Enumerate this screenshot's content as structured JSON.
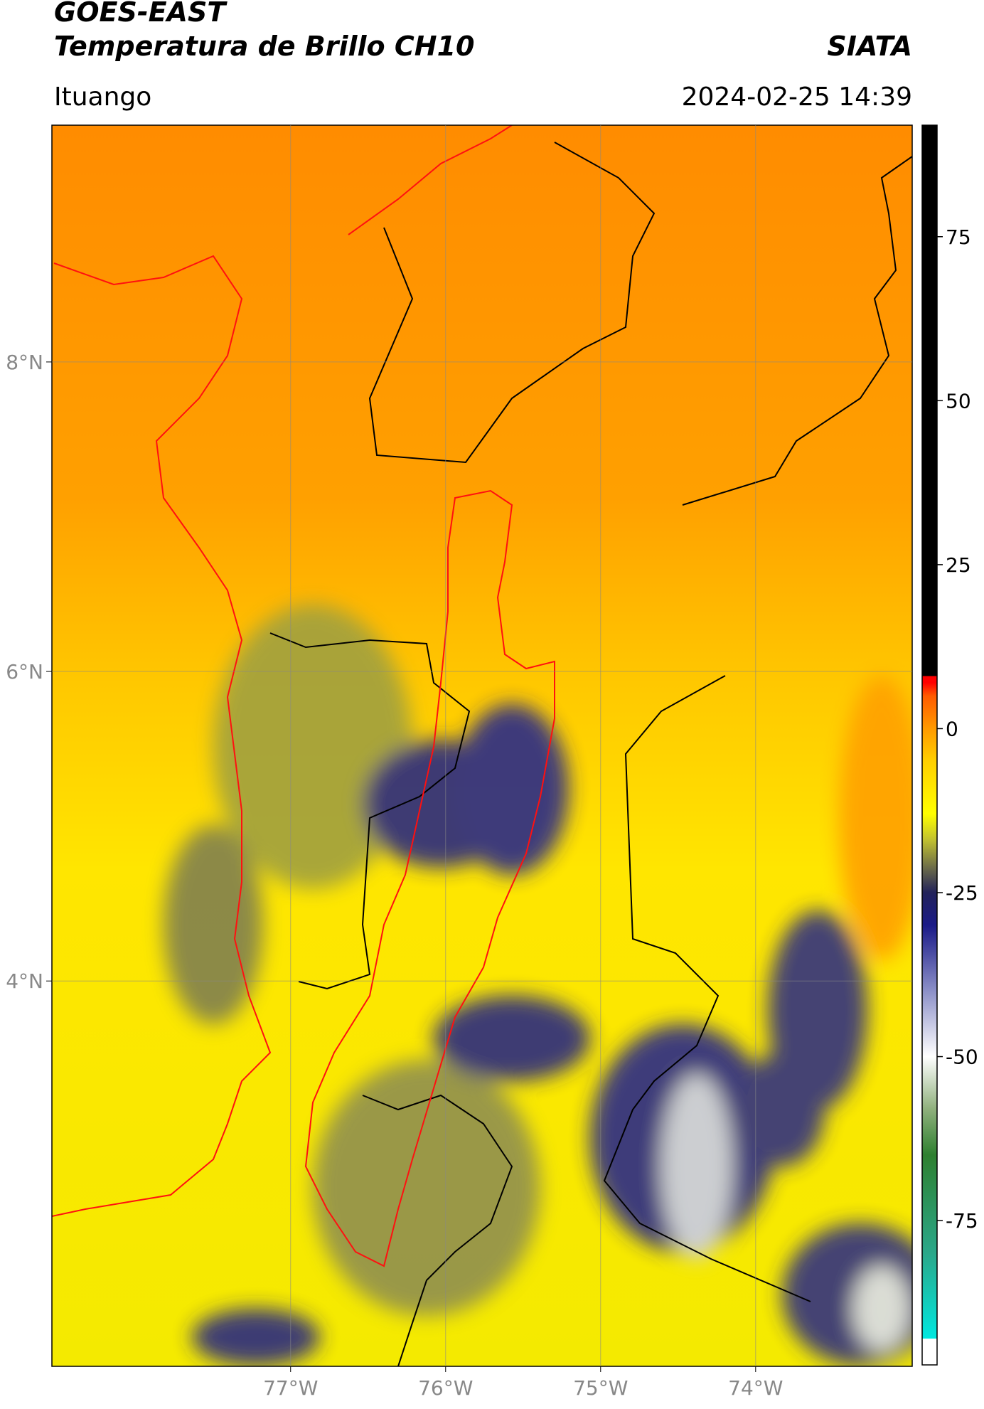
{
  "header": {
    "title": "GOES-EAST",
    "subtitle": "Temperatura de Brillo CH10",
    "brand": "SIATA",
    "location": "Ituango",
    "timestamp": "2024-02-25 14:39"
  },
  "map": {
    "latlim": [
      1.51,
      9.53
    ],
    "lonlim": [
      -78.54,
      -72.99
    ],
    "grid": true,
    "latticks": [
      {
        "value": 8,
        "label": "8°N"
      },
      {
        "value": 6,
        "label": "6°N"
      },
      {
        "value": 4,
        "label": "4°N"
      }
    ],
    "lonticks": [
      {
        "value": -77,
        "label": "77°W"
      },
      {
        "value": -76,
        "label": "76°W"
      },
      {
        "value": -75,
        "label": "75°W"
      },
      {
        "value": -74,
        "label": "74°W"
      }
    ]
  },
  "colorbar": {
    "lim": [
      -97,
      92
    ],
    "ticks": [
      75,
      50,
      25,
      0,
      -25,
      -50,
      -75
    ],
    "colormap": [
      {
        "value": -97,
        "color": "#ffffff"
      },
      {
        "value": -93,
        "color": "#ffffff"
      },
      {
        "value": -93,
        "color": "#00e8e0"
      },
      {
        "value": -80,
        "color": "#2aa88a"
      },
      {
        "value": -65,
        "color": "#2e8030"
      },
      {
        "value": -58,
        "color": "#8fb07c"
      },
      {
        "value": -50,
        "color": "#ffffff"
      },
      {
        "value": -40,
        "color": "#8c90c8"
      },
      {
        "value": -30,
        "color": "#1a1a88"
      },
      {
        "value": -25,
        "color": "#22225a"
      },
      {
        "value": -21,
        "color": "#707048"
      },
      {
        "value": -17,
        "color": "#c0c030"
      },
      {
        "value": -13,
        "color": "#ffff00"
      },
      {
        "value": -5,
        "color": "#ffd000"
      },
      {
        "value": 0,
        "color": "#ff9a00"
      },
      {
        "value": 5,
        "color": "#ff5a00"
      },
      {
        "value": 7,
        "color": "#ff0000"
      },
      {
        "value": 8,
        "color": "#ff0000"
      },
      {
        "value": 8,
        "color": "#000000"
      },
      {
        "value": 92,
        "color": "#000000"
      }
    ]
  }
}
